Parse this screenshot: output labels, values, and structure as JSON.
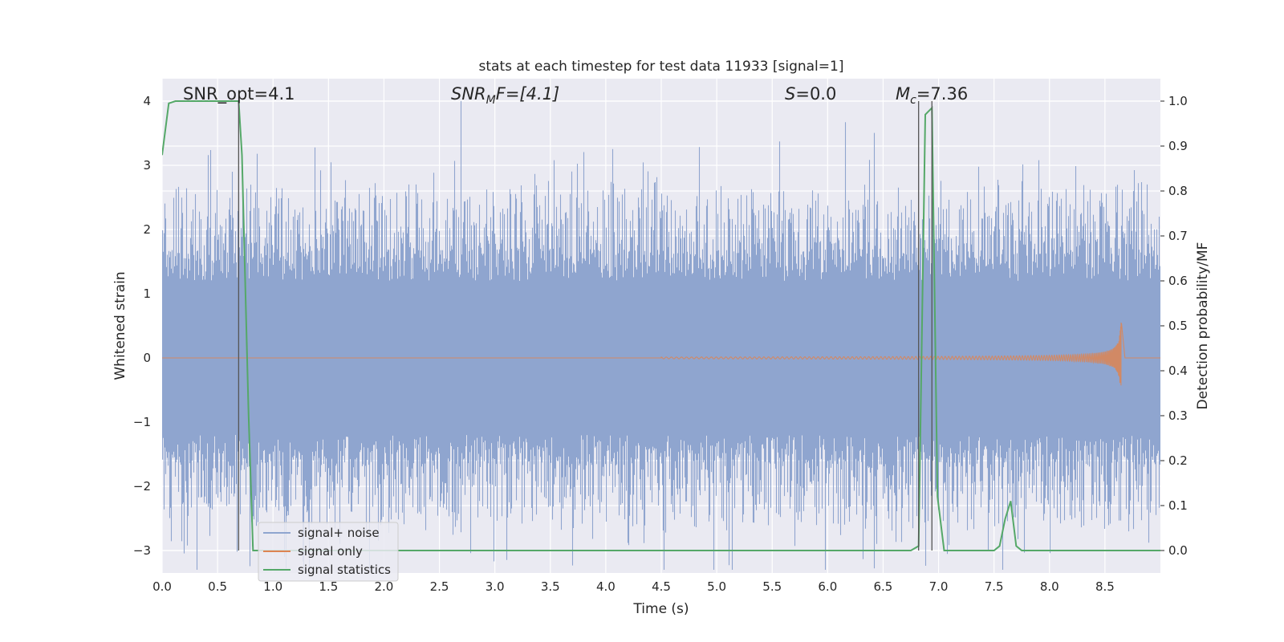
{
  "chart_data": {
    "type": "line",
    "title": "stats at each timestep for test data 11933 [signal=1]",
    "xlabel": "Time (s)",
    "ylabel": "Whitened strain",
    "y2label": "Detection probability/MF",
    "xlim": [
      0,
      9.0
    ],
    "ylim": [
      -3.35,
      4.35
    ],
    "y2lim": [
      -0.05,
      1.05
    ],
    "xticks": [
      0.0,
      0.5,
      1.0,
      1.5,
      2.0,
      2.5,
      3.0,
      3.5,
      4.0,
      4.5,
      5.0,
      5.5,
      6.0,
      6.5,
      7.0,
      7.5,
      8.0,
      8.5
    ],
    "xtick_labels": [
      "0.0",
      "0.5",
      "1.0",
      "1.5",
      "2.0",
      "2.5",
      "3.0",
      "3.5",
      "4.0",
      "4.5",
      "5.0",
      "5.5",
      "6.0",
      "6.5",
      "7.0",
      "7.5",
      "8.0",
      "8.5"
    ],
    "yticks": [
      4,
      3,
      2,
      1,
      0,
      -1,
      -2,
      -3
    ],
    "ytick_labels": [
      "4",
      "3",
      "2",
      "1",
      "0",
      "−1",
      "−2",
      "−3"
    ],
    "y2ticks": [
      1.0,
      0.9,
      0.8,
      0.7,
      0.6,
      0.5,
      0.4,
      0.3,
      0.2,
      0.1,
      0.0
    ],
    "y2tick_labels": [
      "1.0",
      "0.9",
      "0.8",
      "0.7",
      "0.6",
      "0.5",
      "0.4",
      "0.3",
      "0.2",
      "0.1",
      "0.0"
    ],
    "grid": true,
    "legend_position": "lower-left",
    "annotations": {
      "snr_opt": "SNR_opt=4.1",
      "snr_mf_base": "SNR",
      "snr_mf_sub": "M",
      "snr_mf_rest": "F=[4.1]",
      "s_italic": "S",
      "s_rest": "=0.0",
      "mc_base": "M",
      "mc_sub": "c",
      "mc_rest": "=7.36"
    },
    "vertical_lines": [
      0.69,
      6.82,
      6.94
    ],
    "series": [
      {
        "name": "signal+ noise",
        "color": "#8fa5cf",
        "axis": "left",
        "kind": "noise",
        "x_range": [
          0,
          9.0
        ],
        "typical_amplitude": 1.2,
        "peak_amplitude": 4.0
      },
      {
        "name": "signal only",
        "color": "#dd8452",
        "axis": "left",
        "kind": "chirp",
        "x_start": 4.5,
        "x_merger": 8.65,
        "max_amplitude": 0.55
      },
      {
        "name": "signal statistics",
        "color": "#55a868",
        "axis": "right",
        "x": [
          0.0,
          0.06,
          0.12,
          0.5,
          0.69,
          0.72,
          0.78,
          0.82,
          6.75,
          6.82,
          6.88,
          6.94,
          6.99,
          7.05,
          7.1,
          7.5,
          7.55,
          7.6,
          7.65,
          7.7,
          7.75,
          7.8,
          9.0
        ],
        "values": [
          0.88,
          0.995,
          1.0,
          1.0,
          1.0,
          0.88,
          0.3,
          0.0,
          0.0,
          0.01,
          0.97,
          0.985,
          0.12,
          0.0,
          0.0,
          0.0,
          0.01,
          0.07,
          0.11,
          0.01,
          0.0,
          0.0,
          0.0
        ]
      }
    ]
  }
}
